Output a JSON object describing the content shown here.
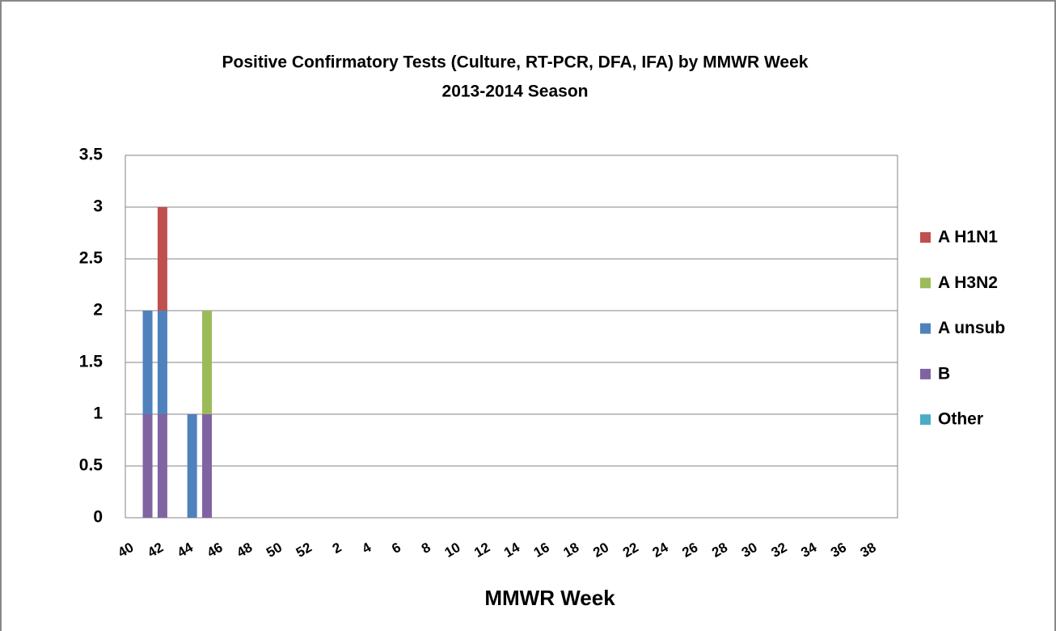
{
  "chart_data": {
    "type": "stacked_bar",
    "title": "Positive Confirmatory Tests (Culture, RT-PCR, DFA, IFA) by MMWR Week",
    "subtitle": "2013-2014 Season",
    "x_label": "MMWR Week",
    "categories": [
      "40",
      null,
      "42",
      null,
      "44",
      null,
      "46",
      null,
      "48",
      null,
      "50",
      null,
      "52",
      null,
      "2",
      null,
      "4",
      null,
      "6",
      null,
      "8",
      null,
      "10",
      null,
      "12",
      null,
      "14",
      null,
      "16",
      null,
      "18",
      null,
      "20",
      null,
      "22",
      null,
      "24",
      null,
      "26",
      null,
      "28",
      null,
      "30",
      null,
      "32",
      null,
      "34",
      null,
      "36",
      null,
      "38",
      null
    ],
    "series": [
      {
        "name": "A H1N1",
        "color": "#c0504d",
        "values": [
          0,
          0,
          1,
          0,
          0,
          0,
          0,
          0,
          0,
          0,
          0,
          0,
          0,
          0,
          0,
          0,
          0,
          0,
          0,
          0,
          0,
          0,
          0,
          0,
          0,
          0,
          0,
          0,
          0,
          0,
          0,
          0,
          0,
          0,
          0,
          0,
          0,
          0,
          0,
          0,
          0,
          0,
          0,
          0,
          0,
          0,
          0,
          0,
          0,
          0,
          0,
          0
        ]
      },
      {
        "name": "A H3N2",
        "color": "#9bbb59",
        "values": [
          0,
          0,
          0,
          0,
          0,
          1,
          0,
          0,
          0,
          0,
          0,
          0,
          0,
          0,
          0,
          0,
          0,
          0,
          0,
          0,
          0,
          0,
          0,
          0,
          0,
          0,
          0,
          0,
          0,
          0,
          0,
          0,
          0,
          0,
          0,
          0,
          0,
          0,
          0,
          0,
          0,
          0,
          0,
          0,
          0,
          0,
          0,
          0,
          0,
          0,
          0,
          0
        ]
      },
      {
        "name": "A unsub",
        "color": "#4f81bd",
        "values": [
          0,
          1,
          1,
          0,
          1,
          0,
          0,
          0,
          0,
          0,
          0,
          0,
          0,
          0,
          0,
          0,
          0,
          0,
          0,
          0,
          0,
          0,
          0,
          0,
          0,
          0,
          0,
          0,
          0,
          0,
          0,
          0,
          0,
          0,
          0,
          0,
          0,
          0,
          0,
          0,
          0,
          0,
          0,
          0,
          0,
          0,
          0,
          0,
          0,
          0,
          0,
          0
        ]
      },
      {
        "name": "B",
        "color": "#8064a2",
        "values": [
          0,
          1,
          1,
          0,
          0,
          1,
          0,
          0,
          0,
          0,
          0,
          0,
          0,
          0,
          0,
          0,
          0,
          0,
          0,
          0,
          0,
          0,
          0,
          0,
          0,
          0,
          0,
          0,
          0,
          0,
          0,
          0,
          0,
          0,
          0,
          0,
          0,
          0,
          0,
          0,
          0,
          0,
          0,
          0,
          0,
          0,
          0,
          0,
          0,
          0,
          0,
          0
        ]
      },
      {
        "name": "Other",
        "color": "#4bacc6",
        "values": [
          0,
          0,
          0,
          0,
          0,
          0,
          0,
          0,
          0,
          0,
          0,
          0,
          0,
          0,
          0,
          0,
          0,
          0,
          0,
          0,
          0,
          0,
          0,
          0,
          0,
          0,
          0,
          0,
          0,
          0,
          0,
          0,
          0,
          0,
          0,
          0,
          0,
          0,
          0,
          0,
          0,
          0,
          0,
          0,
          0,
          0,
          0,
          0,
          0,
          0,
          0,
          0
        ]
      }
    ],
    "ylim": [
      0,
      3.5
    ],
    "yticks": [
      0,
      0.5,
      1,
      1.5,
      2,
      2.5,
      3,
      3.5
    ],
    "grid": true,
    "legend": "right"
  }
}
